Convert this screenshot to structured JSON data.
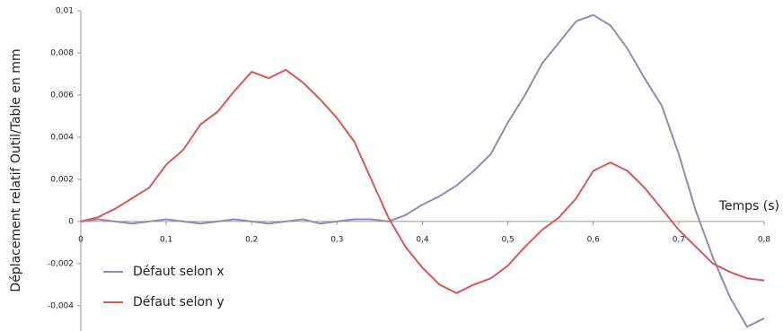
{
  "chart_data": {
    "type": "line",
    "y_label": "Déplacement relatif Outil/Table en mm",
    "x_label": "Temps (s)",
    "x": [
      0,
      0.02,
      0.04,
      0.06,
      0.08,
      0.1,
      0.12,
      0.14,
      0.16,
      0.18,
      0.2,
      0.22,
      0.24,
      0.26,
      0.28,
      0.3,
      0.32,
      0.34,
      0.36,
      0.38,
      0.4,
      0.42,
      0.44,
      0.46,
      0.48,
      0.5,
      0.52,
      0.54,
      0.56,
      0.58,
      0.6,
      0.62,
      0.64,
      0.66,
      0.68,
      0.7,
      0.72,
      0.74,
      0.76,
      0.78,
      0.8
    ],
    "series": [
      {
        "name": "Défaut selon x",
        "color": "#8e8cb6",
        "values": [
          0,
          0.0001,
          0,
          -0.0001,
          0,
          0.0001,
          0,
          -0.0001,
          0,
          0.0001,
          0,
          -0.0001,
          0,
          0.0001,
          -0.0001,
          0,
          0.0001,
          0.0001,
          0,
          0.0003,
          0.0008,
          0.0012,
          0.0017,
          0.0024,
          0.0032,
          0.0047,
          0.006,
          0.0075,
          0.0085,
          0.0095,
          0.0098,
          0.0093,
          0.0082,
          0.0068,
          0.0055,
          0.0032,
          0.0005,
          -0.0017,
          -0.0036,
          -0.005,
          -0.0046
        ]
      },
      {
        "name": "Défaut selon y",
        "color": "#d85858",
        "values": [
          0,
          0.0002,
          0.0006,
          0.0011,
          0.0016,
          0.0027,
          0.0034,
          0.0046,
          0.0052,
          0.0062,
          0.0071,
          0.0068,
          0.0072,
          0.0066,
          0.0058,
          0.0049,
          0.0038,
          0.002,
          0.0002,
          -0.0012,
          -0.0022,
          -0.003,
          -0.0034,
          -0.003,
          -0.0027,
          -0.0021,
          -0.0012,
          -0.0004,
          0.0002,
          0.0011,
          0.0024,
          0.0028,
          0.0024,
          0.0016,
          0.0006,
          -0.0004,
          -0.0012,
          -0.002,
          -0.0024,
          -0.0027,
          -0.0028
        ]
      }
    ],
    "xlim": [
      0,
      0.8
    ],
    "ylim": [
      -0.0052,
      0.01
    ],
    "xticks": [
      0,
      {
        "value": 0.1,
        "label": "0,1"
      },
      {
        "value": 0.2,
        "label": "0,2"
      },
      {
        "value": 0.3,
        "label": "0,3"
      },
      {
        "value": 0.4,
        "label": "0,4"
      },
      {
        "value": 0.5,
        "label": "0,5"
      },
      {
        "value": 0.6,
        "label": "0,6"
      },
      {
        "value": 0.7,
        "label": "0,7"
      },
      {
        "value": 0.8,
        "label": "0,8"
      }
    ],
    "yticks": [
      {
        "value": -0.004,
        "label": "-0,004"
      },
      {
        "value": -0.002,
        "label": "-0,002"
      },
      0,
      {
        "value": 0.002,
        "label": "0,002"
      },
      {
        "value": 0.004,
        "label": "0,004"
      },
      {
        "value": 0.006,
        "label": "0,006"
      },
      {
        "value": 0.008,
        "label": "0,008"
      },
      {
        "value": 0.01,
        "label": "0,01"
      }
    ],
    "legend": "lower left"
  }
}
